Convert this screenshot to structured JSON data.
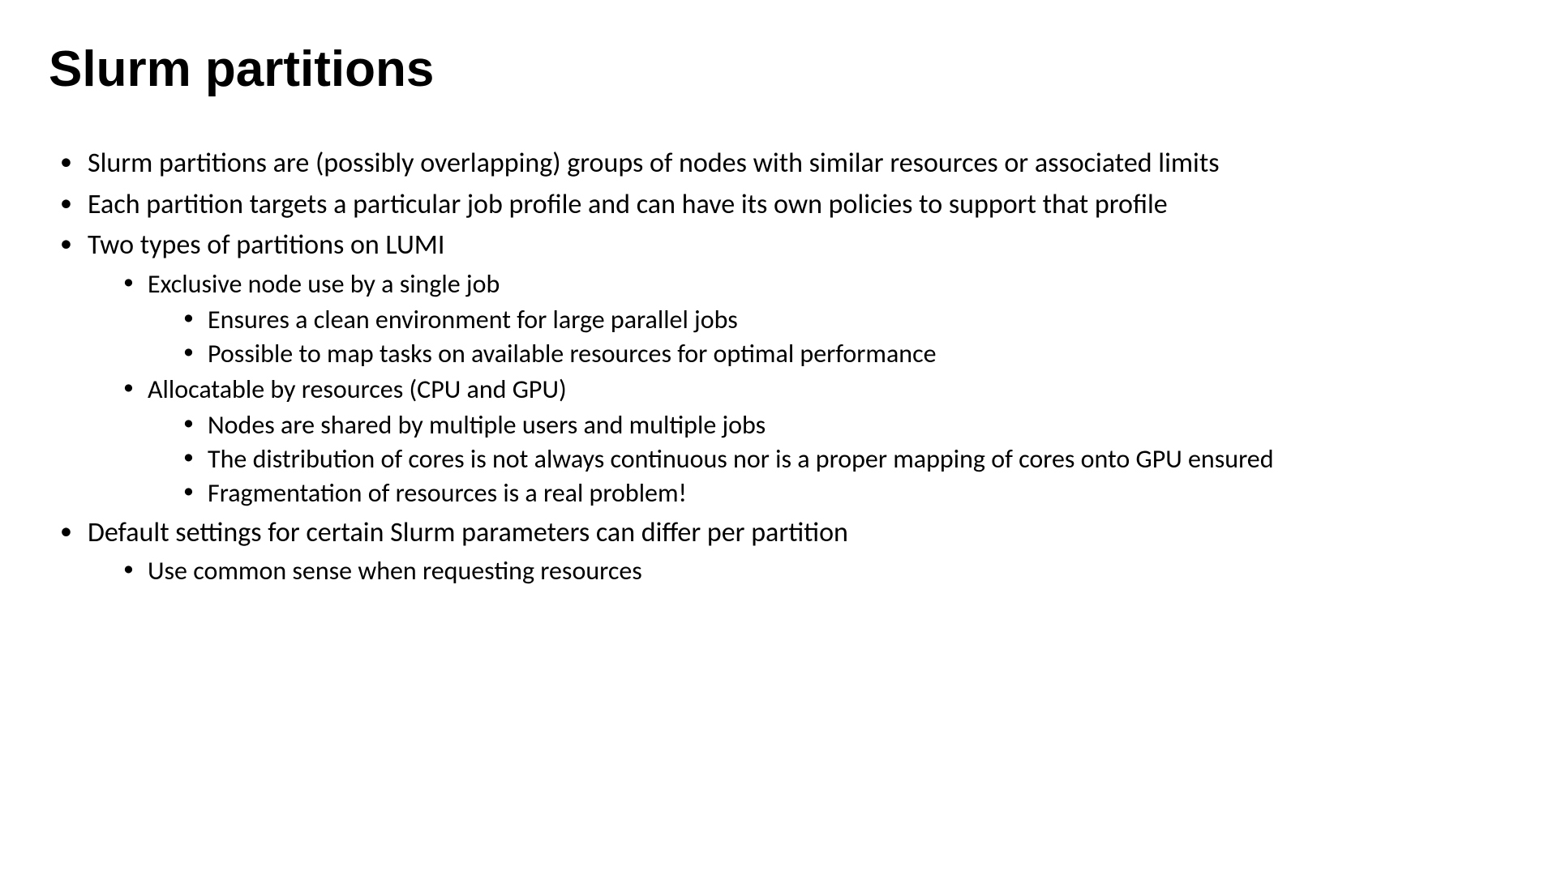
{
  "title": "Slurm partitions",
  "bullets": {
    "b1": "Slurm partitions are (possibly overlapping) groups of nodes with similar resources or associated limits",
    "b2": "Each partition targets a particular job profile and can have its own policies to support that profile",
    "b3": "Two types of partitions on LUMI",
    "b3_1": "Exclusive node use by a single job",
    "b3_1_1": "Ensures a clean environment for large parallel jobs",
    "b3_1_2": "Possible to map tasks on available resources for optimal performance",
    "b3_2": "Allocatable by resources (CPU and GPU)",
    "b3_2_1": "Nodes are shared by multiple users and multiple jobs",
    "b3_2_2": "The distribution of cores is not always continuous nor is a proper mapping of cores onto GPU ensured",
    "b3_2_3": "Fragmentation of resources is a real problem!",
    "b4": "Default settings for certain Slurm parameters can differ per partition",
    "b4_1": "Use common sense when requesting resources"
  },
  "styles": {
    "title_fontsize": 62,
    "title_fontweight": 700,
    "body_fontsize_l1": 34,
    "body_fontsize_l2": 32,
    "body_fontsize_l3": 32,
    "background_color": "#ffffff",
    "text_color": "#000000"
  }
}
